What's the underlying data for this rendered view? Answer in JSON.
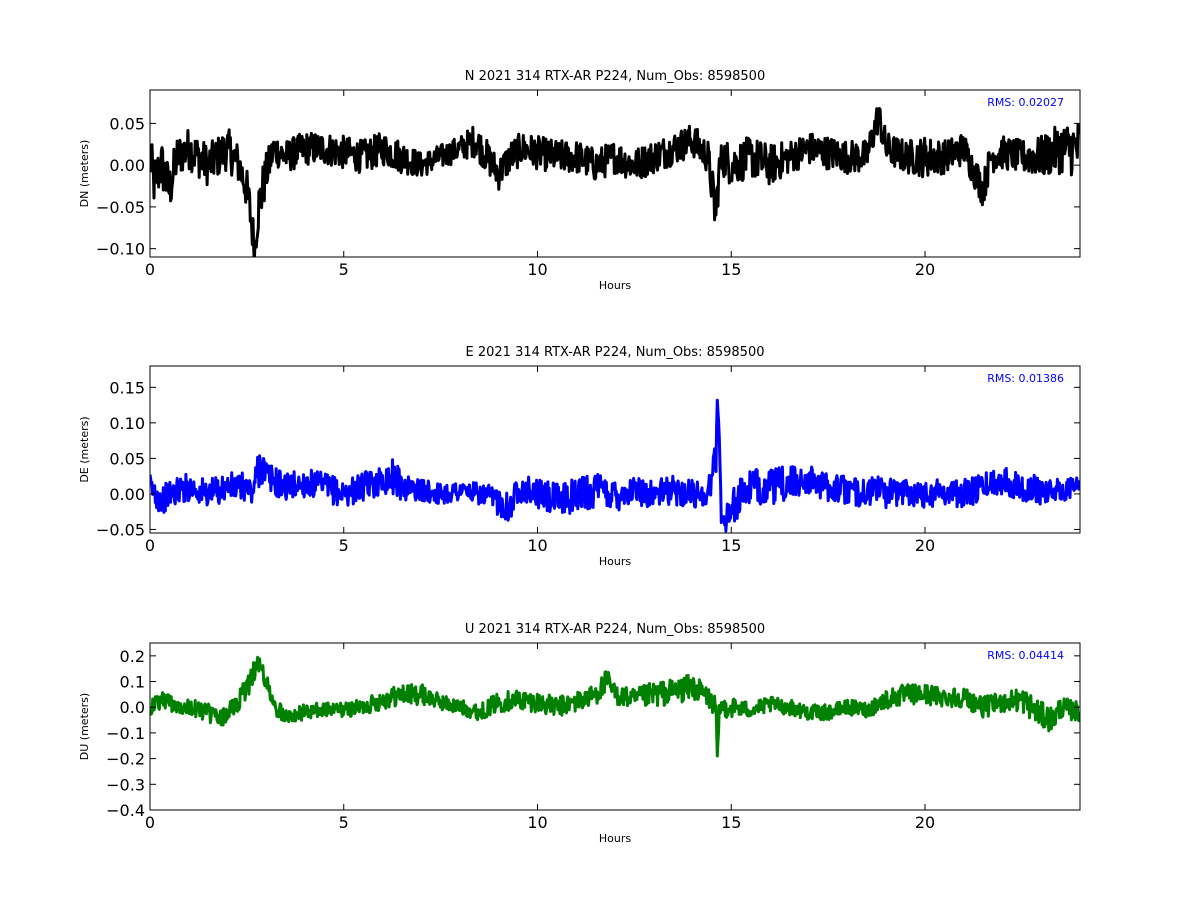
{
  "chart_data": [
    {
      "type": "line",
      "title": "N 2021 314 RTX-AR  P224, Num_Obs: 8598500",
      "xlabel": "Hours",
      "ylabel": "DN (meters)",
      "xlim": [
        0,
        24
      ],
      "ylim": [
        -0.11,
        0.09
      ],
      "x_ticks": [
        0,
        5,
        10,
        15,
        20
      ],
      "y_ticks": [
        -0.1,
        -0.05,
        0.0,
        0.05
      ],
      "y_tick_labels": [
        "−0.10",
        "−0.05",
        "0.00",
        "0.05"
      ],
      "grid": false,
      "color": "#000000",
      "annotation": {
        "label": "RMS:",
        "value": "0.02027",
        "color": "#0000ff",
        "placement": "top-right"
      },
      "series": [
        {
          "x": [
            0,
            0.1,
            0.3,
            0.5,
            0.7,
            1.0,
            1.5,
            2.0,
            2.3,
            2.5,
            2.6,
            2.7,
            2.8,
            2.9,
            3.0,
            3.2,
            3.5,
            4.0,
            4.5,
            5.0,
            5.5,
            6.0,
            6.5,
            7.0,
            7.5,
            8.0,
            8.4,
            8.7,
            9.0,
            9.3,
            9.6,
            10.0,
            10.5,
            11.0,
            11.5,
            12.0,
            12.5,
            13.0,
            13.5,
            14.0,
            14.4,
            14.6,
            14.7,
            14.8,
            15.0,
            15.5,
            16.0,
            16.5,
            17.0,
            17.5,
            18.0,
            18.5,
            18.8,
            19.0,
            19.5,
            20.0,
            20.5,
            21.0,
            21.4,
            21.5,
            21.7,
            22.0,
            22.5,
            23.0,
            23.5,
            24.0
          ],
          "y": [
            0.01,
            -0.02,
            0.0,
            -0.03,
            0.01,
            0.02,
            0.0,
            0.02,
            0.0,
            -0.03,
            -0.06,
            -0.1,
            -0.05,
            -0.03,
            -0.01,
            0.02,
            0.01,
            0.02,
            0.02,
            0.015,
            0.01,
            0.02,
            0.01,
            0.0,
            0.01,
            0.02,
            0.03,
            0.01,
            -0.01,
            0.01,
            0.02,
            0.015,
            0.01,
            0.01,
            0.0,
            0.01,
            0.0,
            0.01,
            0.02,
            0.03,
            0.01,
            -0.06,
            0.0,
            0.01,
            0.0,
            0.01,
            0.0,
            0.01,
            0.02,
            0.015,
            0.01,
            0.01,
            0.06,
            0.02,
            0.01,
            0.01,
            0.01,
            0.02,
            -0.02,
            -0.03,
            0.01,
            0.015,
            0.01,
            0.01,
            0.02,
            0.02
          ],
          "spread": [
            0.03,
            0.03,
            0.03,
            0.03,
            0.025,
            0.025,
            0.025,
            0.025,
            0.025,
            0.025,
            0.03,
            0.02,
            0.03,
            0.03,
            0.025,
            0.02,
            0.02,
            0.02,
            0.02,
            0.02,
            0.02,
            0.02,
            0.02,
            0.015,
            0.015,
            0.015,
            0.02,
            0.02,
            0.02,
            0.02,
            0.02,
            0.02,
            0.02,
            0.02,
            0.02,
            0.02,
            0.02,
            0.02,
            0.02,
            0.02,
            0.02,
            0.03,
            0.02,
            0.025,
            0.025,
            0.025,
            0.025,
            0.02,
            0.02,
            0.02,
            0.02,
            0.02,
            0.02,
            0.02,
            0.02,
            0.025,
            0.02,
            0.02,
            0.02,
            0.02,
            0.02,
            0.02,
            0.02,
            0.025,
            0.03,
            0.035
          ]
        }
      ]
    },
    {
      "type": "line",
      "title": "E 2021 314 RTX-AR  P224, Num_Obs: 8598500",
      "xlabel": "Hours",
      "ylabel": "DE (meters)",
      "xlim": [
        0,
        24
      ],
      "ylim": [
        -0.055,
        0.18
      ],
      "x_ticks": [
        0,
        5,
        10,
        15,
        20
      ],
      "y_ticks": [
        -0.05,
        0.0,
        0.05,
        0.1,
        0.15
      ],
      "y_tick_labels": [
        "−0.05",
        "0.00",
        "0.05",
        "0.10",
        "0.15"
      ],
      "grid": false,
      "color": "#0000ff",
      "annotation": {
        "label": "RMS:",
        "value": "0.01386",
        "color": "#0000ff",
        "placement": "top-right"
      },
      "series": [
        {
          "x": [
            0,
            0.3,
            0.5,
            1.0,
            1.5,
            2.0,
            2.5,
            2.6,
            2.7,
            2.8,
            2.9,
            3.0,
            3.3,
            3.5,
            4.0,
            4.5,
            5.0,
            5.5,
            6.0,
            6.3,
            6.5,
            7.0,
            7.5,
            8.0,
            8.5,
            9.0,
            9.3,
            9.5,
            10.0,
            10.5,
            11.0,
            11.5,
            12.0,
            12.5,
            13.0,
            13.5,
            14.0,
            14.4,
            14.6,
            14.65,
            14.7,
            14.75,
            14.8,
            15.0,
            15.3,
            15.5,
            16.0,
            16.5,
            17.0,
            17.5,
            18.0,
            18.5,
            18.8,
            19.0,
            19.5,
            20.0,
            20.5,
            21.0,
            21.5,
            22.0,
            22.5,
            23.0,
            23.5,
            24.0
          ],
          "y": [
            0.01,
            -0.01,
            0.0,
            0.01,
            0.0,
            0.01,
            0.01,
            0.0,
            0.01,
            0.04,
            0.04,
            0.025,
            0.015,
            0.01,
            0.015,
            0.01,
            0.0,
            0.01,
            0.02,
            0.025,
            0.01,
            0.005,
            0.0,
            0.005,
            0.0,
            -0.01,
            -0.02,
            0.01,
            0.0,
            -0.01,
            0.0,
            0.005,
            0.0,
            0.005,
            0.0,
            0.005,
            0.0,
            0.0,
            0.05,
            0.14,
            0.04,
            -0.03,
            -0.04,
            -0.02,
            0.0,
            0.01,
            0.01,
            0.015,
            0.02,
            0.01,
            0.005,
            0.0,
            0.01,
            0.0,
            0.005,
            0.0,
            0.005,
            0.0,
            0.01,
            0.02,
            0.01,
            0.005,
            0.005,
            0.01
          ],
          "spread": [
            0.02,
            0.02,
            0.02,
            0.02,
            0.02,
            0.02,
            0.02,
            0.025,
            0.02,
            0.03,
            0.03,
            0.025,
            0.02,
            0.02,
            0.02,
            0.02,
            0.02,
            0.02,
            0.02,
            0.025,
            0.02,
            0.015,
            0.015,
            0.015,
            0.015,
            0.02,
            0.02,
            0.02,
            0.02,
            0.025,
            0.025,
            0.025,
            0.025,
            0.02,
            0.02,
            0.02,
            0.02,
            0.02,
            0.03,
            0.03,
            0.03,
            0.02,
            0.02,
            0.025,
            0.025,
            0.025,
            0.025,
            0.025,
            0.02,
            0.02,
            0.02,
            0.02,
            0.02,
            0.02,
            0.02,
            0.02,
            0.02,
            0.02,
            0.02,
            0.02,
            0.02,
            0.02,
            0.015,
            0.015
          ]
        }
      ]
    },
    {
      "type": "line",
      "title": "U 2021 314 RTX-AR  P224, Num_Obs: 8598500",
      "xlabel": "Hours",
      "ylabel": "DU (meters)",
      "xlim": [
        0,
        24
      ],
      "ylim": [
        -0.4,
        0.25
      ],
      "x_ticks": [
        0,
        5,
        10,
        15,
        20
      ],
      "y_ticks": [
        -0.4,
        -0.3,
        -0.2,
        -0.1,
        0.0,
        0.1,
        0.2
      ],
      "y_tick_labels": [
        "−0.4",
        "−0.3",
        "−0.2",
        "−0.1",
        "0.0",
        "0.1",
        "0.2"
      ],
      "grid": false,
      "color": "#008000",
      "annotation": {
        "label": "RMS:",
        "value": "0.04414",
        "color": "#0000ff",
        "placement": "top-right"
      },
      "series": [
        {
          "x": [
            0,
            0.3,
            0.5,
            1.0,
            1.5,
            1.8,
            2.0,
            2.3,
            2.5,
            2.7,
            2.8,
            3.0,
            3.2,
            3.5,
            4.0,
            4.5,
            5.0,
            5.5,
            6.0,
            6.5,
            7.0,
            7.5,
            8.0,
            8.5,
            9.0,
            9.5,
            10.0,
            10.5,
            11.0,
            11.5,
            11.8,
            12.0,
            12.5,
            13.0,
            13.5,
            14.0,
            14.4,
            14.6,
            14.65,
            14.7,
            14.8,
            15.0,
            15.5,
            16.0,
            16.5,
            17.0,
            17.5,
            18.0,
            18.5,
            19.0,
            19.5,
            20.0,
            20.5,
            21.0,
            21.5,
            22.0,
            22.5,
            23.0,
            23.3,
            23.5,
            24.0
          ],
          "y": [
            0.0,
            0.03,
            0.02,
            0.0,
            -0.02,
            -0.05,
            -0.02,
            0.02,
            0.08,
            0.15,
            0.17,
            0.1,
            0.0,
            -0.03,
            -0.02,
            -0.01,
            -0.01,
            0.0,
            0.03,
            0.05,
            0.05,
            0.02,
            0.0,
            -0.02,
            0.02,
            0.03,
            0.02,
            0.0,
            0.02,
            0.05,
            0.1,
            0.05,
            0.03,
            0.05,
            0.06,
            0.08,
            0.04,
            0.0,
            -0.25,
            0.0,
            0.0,
            0.0,
            -0.01,
            0.01,
            0.0,
            -0.02,
            -0.02,
            0.0,
            -0.01,
            0.03,
            0.05,
            0.05,
            0.04,
            0.04,
            0.0,
            0.02,
            0.03,
            -0.03,
            -0.05,
            0.0,
            -0.02
          ],
          "spread": [
            0.04,
            0.04,
            0.04,
            0.03,
            0.04,
            0.04,
            0.03,
            0.04,
            0.05,
            0.05,
            0.05,
            0.04,
            0.03,
            0.03,
            0.03,
            0.03,
            0.03,
            0.03,
            0.04,
            0.04,
            0.04,
            0.03,
            0.03,
            0.03,
            0.04,
            0.04,
            0.04,
            0.04,
            0.04,
            0.04,
            0.05,
            0.04,
            0.04,
            0.05,
            0.05,
            0.05,
            0.04,
            0.04,
            0.1,
            0.04,
            0.04,
            0.04,
            0.03,
            0.03,
            0.03,
            0.03,
            0.03,
            0.03,
            0.03,
            0.04,
            0.04,
            0.04,
            0.04,
            0.04,
            0.04,
            0.04,
            0.05,
            0.05,
            0.05,
            0.04,
            0.04
          ]
        }
      ]
    }
  ]
}
